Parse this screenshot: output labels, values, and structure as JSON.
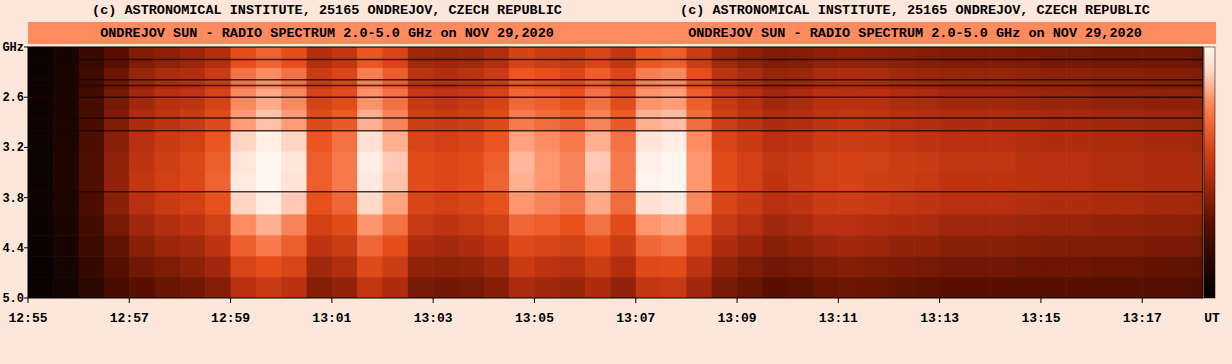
{
  "chart_data": {
    "type": "heatmap",
    "credits": [
      "(c) ASTRONOMICAL INSTITUTE, 25165 ONDREJOV, CZECH REPUBLIC",
      "(c) ASTRONOMICAL INSTITUTE, 25165 ONDREJOV, CZECH REPUBLIC"
    ],
    "titles": [
      "ONDREJOV SUN - RADIO SPECTRUM 2.0-5.0 GHz on NOV 29,2020",
      "ONDREJOV SUN - RADIO SPECTRUM 2.0-5.0 GHz on NOV 29,2020"
    ],
    "xlabel": "UT",
    "xlim": [
      775,
      798.2
    ],
    "xticks": [
      {
        "value": 775,
        "label": "12:55"
      },
      {
        "value": 777,
        "label": "12:57"
      },
      {
        "value": 779,
        "label": "12:59"
      },
      {
        "value": 781,
        "label": "13:01"
      },
      {
        "value": 783,
        "label": "13:03"
      },
      {
        "value": 785,
        "label": "13:05"
      },
      {
        "value": 787,
        "label": "13:07"
      },
      {
        "value": 789,
        "label": "13:09"
      },
      {
        "value": 791,
        "label": "13:11"
      },
      {
        "value": 793,
        "label": "13:13"
      },
      {
        "value": 795,
        "label": "13:15"
      },
      {
        "value": 797,
        "label": "13:17"
      }
    ],
    "ylim": [
      2.0,
      5.0
    ],
    "yticks": [
      {
        "value": 2.0,
        "label": "GHz"
      },
      2.6,
      3.2,
      3.8,
      4.4,
      {
        "value": 5.0,
        "label": "5.0"
      }
    ],
    "x": [
      775,
      775.5,
      776,
      776.5,
      777,
      777.5,
      778,
      778.5,
      779,
      779.5,
      780,
      780.5,
      781,
      781.5,
      782,
      782.5,
      783,
      783.5,
      784,
      784.5,
      785,
      785.5,
      786,
      786.5,
      787,
      787.5,
      788,
      788.5,
      789,
      789.5,
      790,
      790.5,
      791,
      791.5,
      792,
      792.5,
      793,
      793.5,
      794,
      794.5,
      795,
      795.5,
      796,
      796.5,
      797,
      797.5,
      798
    ],
    "y_edges": [
      2.0,
      2.25,
      2.5,
      2.75,
      3.0,
      3.25,
      3.5,
      3.75,
      4.0,
      4.25,
      4.5,
      4.75,
      5.0
    ],
    "zlim": [
      0,
      100
    ],
    "z": [
      [
        4,
        8,
        19,
        30,
        38,
        41,
        44,
        49,
        64,
        69,
        64,
        49,
        53,
        66,
        60,
        45,
        44,
        45,
        49,
        59,
        56,
        54,
        60,
        53,
        66,
        68,
        56,
        45,
        41,
        38,
        39,
        41,
        42,
        41,
        40,
        39,
        38,
        38,
        38,
        37,
        36,
        36,
        35,
        35,
        35,
        35,
        34
      ],
      [
        4,
        9,
        21,
        34,
        43,
        47,
        49,
        55,
        72,
        78,
        72,
        55,
        60,
        75,
        68,
        51,
        49,
        51,
        55,
        66,
        64,
        61,
        68,
        60,
        75,
        77,
        64,
        51,
        47,
        43,
        44,
        47,
        48,
        47,
        45,
        44,
        43,
        43,
        43,
        42,
        41,
        41,
        40,
        40,
        39,
        39,
        38
      ],
      [
        5,
        9,
        23,
        36,
        45,
        50,
        52,
        59,
        77,
        83,
        77,
        59,
        63,
        79,
        72,
        54,
        52,
        54,
        59,
        70,
        68,
        65,
        72,
        63,
        79,
        81,
        68,
        54,
        50,
        45,
        47,
        50,
        50,
        50,
        48,
        47,
        45,
        45,
        45,
        44,
        43,
        43,
        42,
        42,
        41,
        41,
        41
      ],
      [
        5,
        10,
        24,
        38,
        48,
        52,
        55,
        62,
        81,
        87,
        81,
        62,
        67,
        84,
        76,
        57,
        55,
        57,
        62,
        74,
        71,
        68,
        76,
        67,
        84,
        86,
        71,
        57,
        52,
        48,
        49,
        52,
        53,
        52,
        50,
        49,
        48,
        48,
        48,
        47,
        46,
        46,
        45,
        45,
        44,
        44,
        43
      ],
      [
        5,
        10,
        25,
        40,
        50,
        55,
        58,
        66,
        90,
        98,
        90,
        66,
        72,
        93,
        84,
        60,
        58,
        60,
        66,
        82,
        78,
        74,
        84,
        72,
        94,
        97,
        78,
        60,
        55,
        50,
        52,
        55,
        56,
        55,
        53,
        52,
        50,
        50,
        50,
        49,
        48,
        48,
        47,
        47,
        46,
        46,
        45
      ],
      [
        5,
        11,
        26,
        42,
        52,
        57,
        61,
        68,
        95,
        100,
        95,
        68,
        74,
        97,
        88,
        63,
        61,
        63,
        68,
        85,
        80,
        76,
        88,
        74,
        98,
        100,
        80,
        63,
        58,
        53,
        55,
        58,
        59,
        58,
        56,
        55,
        53,
        53,
        53,
        51,
        50,
        50,
        49,
        49,
        48,
        48,
        47
      ],
      [
        5,
        11,
        26,
        42,
        53,
        58,
        61,
        69,
        96,
        100,
        94,
        68,
        74,
        96,
        87,
        63,
        61,
        63,
        69,
        84,
        80,
        76,
        87,
        74,
        99,
        100,
        80,
        63,
        58,
        52,
        55,
        58,
        59,
        57,
        56,
        54,
        52,
        52,
        52,
        51,
        50,
        50,
        49,
        49,
        48,
        48,
        47
      ],
      [
        5,
        10,
        25,
        40,
        50,
        55,
        58,
        65,
        90,
        97,
        88,
        65,
        70,
        91,
        82,
        60,
        58,
        60,
        65,
        80,
        76,
        73,
        83,
        71,
        93,
        96,
        77,
        60,
        55,
        50,
        52,
        55,
        56,
        55,
        53,
        52,
        50,
        50,
        50,
        49,
        48,
        48,
        47,
        47,
        46,
        46,
        45
      ],
      [
        4,
        9,
        22,
        36,
        45,
        49,
        52,
        58,
        78,
        84,
        76,
        58,
        63,
        80,
        72,
        54,
        52,
        54,
        58,
        70,
        68,
        65,
        72,
        63,
        80,
        82,
        68,
        54,
        50,
        45,
        47,
        50,
        50,
        49,
        48,
        47,
        45,
        45,
        45,
        44,
        43,
        43,
        42,
        42,
        41,
        41,
        40
      ],
      [
        4,
        8,
        20,
        32,
        40,
        44,
        46,
        52,
        68,
        74,
        68,
        52,
        56,
        70,
        64,
        48,
        46,
        48,
        52,
        62,
        60,
        58,
        64,
        56,
        70,
        72,
        60,
        48,
        44,
        40,
        42,
        44,
        45,
        44,
        42,
        42,
        40,
        40,
        40,
        39,
        38,
        38,
        38,
        38,
        37,
        37,
        36
      ],
      [
        3,
        7,
        17,
        28,
        35,
        38,
        41,
        45,
        60,
        64,
        60,
        45,
        49,
        62,
        56,
        42,
        41,
        42,
        45,
        55,
        52,
        50,
        56,
        49,
        62,
        63,
        52,
        42,
        38,
        35,
        36,
        38,
        39,
        38,
        37,
        36,
        35,
        35,
        35,
        34,
        34,
        34,
        33,
        33,
        32,
        32,
        31
      ],
      [
        3,
        6,
        15,
        24,
        30,
        33,
        35,
        39,
        51,
        55,
        51,
        39,
        42,
        53,
        48,
        36,
        35,
        36,
        39,
        47,
        45,
        43,
        48,
        42,
        53,
        54,
        45,
        36,
        33,
        30,
        31,
        33,
        34,
        33,
        32,
        31,
        30,
        30,
        30,
        29,
        29,
        29,
        28,
        28,
        28,
        28,
        27
      ]
    ],
    "interference_lines": [
      2.15,
      2.39,
      2.46,
      2.6,
      2.85,
      3.0,
      3.73
    ]
  }
}
